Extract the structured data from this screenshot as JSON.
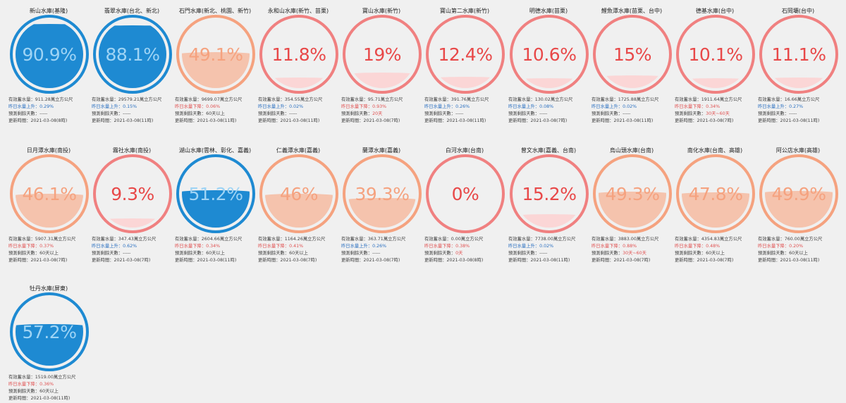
{
  "labels": {
    "effective_prefix": "有效蓄水量：",
    "forecast_prefix": "預測剩餘天數：",
    "updated_prefix": "更新時間："
  },
  "colors": {
    "full": "#1e8ad2",
    "warn": "#f5a27f",
    "low": "#f08080"
  },
  "reservoirs": [
    {
      "name": "新山水庫(基隆)",
      "percent": "90.9%",
      "level": 0.909,
      "status": "full",
      "storage": "911.28萬立方公尺",
      "change": "昨日水量上升：0.29%",
      "trend": "up",
      "forecast": "預測剩餘天數：-----",
      "updated": "更新時間：2021-03-08(8時)"
    },
    {
      "name": "翡翠水庫(台北、新北)",
      "percent": "88.1%",
      "level": 0.881,
      "status": "full",
      "storage": "29579.21萬立方公尺",
      "change": "昨日水量上升：0.15%",
      "trend": "up",
      "forecast": "預測剩餘天數：-----",
      "updated": "更新時間：2021-03-08(11時)"
    },
    {
      "name": "石門水庫(新北、桃園、新竹)",
      "percent": "49.1%",
      "level": 0.491,
      "status": "warn",
      "storage": "9699.07萬立方公尺",
      "change": "昨日水量下降：0.06%",
      "trend": "down",
      "forecast": "預測剩餘天數：60天以上",
      "updated": "更新時間：2021-03-08(11時)"
    },
    {
      "name": "永和山水庫(新竹、苗栗)",
      "percent": "11.8%",
      "level": 0.118,
      "status": "low",
      "storage": "354.55萬立方公尺",
      "change": "昨日水量上升：0.02%",
      "trend": "up",
      "forecast": "預測剩餘天數：-----",
      "updated": "更新時間：2021-03-08(11時)"
    },
    {
      "name": "寶山水庫(新竹)",
      "percent": "19%",
      "level": 0.19,
      "status": "low",
      "storage": "95.71萬立方公尺",
      "change": "昨日水量下降：0.93%",
      "trend": "down",
      "forecast": "預測剩餘天數：20天",
      "updated": "更新時間：2021-03-08(7時)"
    },
    {
      "name": "寶山第二水庫(新竹)",
      "percent": "12.4%",
      "level": 0.124,
      "status": "low",
      "storage": "391.76萬立方公尺",
      "change": "昨日水量上升：0.26%",
      "trend": "up",
      "forecast": "預測剩餘天數：-----",
      "updated": "更新時間：2021-03-08(11時)"
    },
    {
      "name": "明德水庫(苗栗)",
      "percent": "10.6%",
      "level": 0.106,
      "status": "low",
      "storage": "130.02萬立方公尺",
      "change": "昨日水量上升：0.08%",
      "trend": "up",
      "forecast": "預測剩餘天數：-----",
      "updated": "更新時間：2021-03-08(7時)"
    },
    {
      "name": "鯉魚潭水庫(苗栗、台中)",
      "percent": "15%",
      "level": 0.15,
      "status": "low",
      "storage": "1725.88萬立方公尺",
      "change": "昨日水量上升：0.02%",
      "trend": "up",
      "forecast": "預測剩餘天數：-----",
      "updated": "更新時間：2021-03-08(11時)"
    },
    {
      "name": "德基水庫(台中)",
      "percent": "10.1%",
      "level": 0.101,
      "status": "low",
      "storage": "1911.64萬立方公尺",
      "change": "昨日水量下降：0.34%",
      "trend": "down",
      "forecast": "預測剩餘天數：30天~60天",
      "updated": "更新時間：2021-03-08(7時)"
    },
    {
      "name": "石岡壩(台中)",
      "percent": "11.1%",
      "level": 0.111,
      "status": "low",
      "storage": "16.66萬立方公尺",
      "change": "昨日水量上升：0.27%",
      "trend": "up",
      "forecast": "預測剩餘天數：-----",
      "updated": "更新時間：2021-03-08(11時)"
    },
    {
      "name": "日月潭水庫(南投)",
      "percent": "46.1%",
      "level": 0.461,
      "status": "warn",
      "storage": "5907.31萬立方公尺",
      "change": "昨日水量下降：0.37%",
      "trend": "down",
      "forecast": "預測剩餘天數：60天以上",
      "updated": "更新時間：2021-03-08(7時)"
    },
    {
      "name": "霧社水庫(南投)",
      "percent": "9.3%",
      "level": 0.093,
      "status": "low",
      "storage": "347.43萬立方公尺",
      "change": "昨日水量上升：0.62%",
      "trend": "up",
      "forecast": "預測剩餘天數：-----",
      "updated": "更新時間：2021-03-08(7時)"
    },
    {
      "name": "湖山水庫(雲林、彰化、嘉義)",
      "percent": "51.2%",
      "level": 0.512,
      "status": "full",
      "storage": "2604.66萬立方公尺",
      "change": "昨日水量下降：0.34%",
      "trend": "down",
      "forecast": "預測剩餘天數：60天以上",
      "updated": "更新時間：2021-03-08(11時)"
    },
    {
      "name": "仁義潭水庫(嘉義)",
      "percent": "46%",
      "level": 0.46,
      "status": "warn",
      "storage": "1164.26萬立方公尺",
      "change": "昨日水量下降：0.41%",
      "trend": "down",
      "forecast": "預測剩餘天數：60天以上",
      "updated": "更新時間：2021-03-08(7時)"
    },
    {
      "name": "蘭潭水庫(嘉義)",
      "percent": "39.3%",
      "level": 0.393,
      "status": "warn",
      "storage": "363.71萬立方公尺",
      "change": "昨日水量上升：0.26%",
      "trend": "up",
      "forecast": "預測剩餘天數：-----",
      "updated": "更新時間：2021-03-08(7時)"
    },
    {
      "name": "白河水庫(台南)",
      "percent": "0%",
      "level": 0.0,
      "status": "low",
      "storage": "0.00萬立方公尺",
      "change": "昨日水量下降：0.38%",
      "trend": "down",
      "forecast": "預測剩餘天數：0天",
      "updated": "更新時間：2021-03-08(8時)"
    },
    {
      "name": "曾文水庫(嘉義、台南)",
      "percent": "15.2%",
      "level": 0.152,
      "status": "low",
      "storage": "7738.00萬立方公尺",
      "change": "昨日水量上升：0.02%",
      "trend": "up",
      "forecast": "預測剩餘天數：-----",
      "updated": "更新時間：2021-03-08(11時)"
    },
    {
      "name": "烏山頭水庫(台南)",
      "percent": "49.3%",
      "level": 0.493,
      "status": "warn",
      "storage": "3883.00萬立方公尺",
      "change": "昨日水量下降：0.88%",
      "trend": "down",
      "forecast": "預測剩餘天數：30天~60天",
      "updated": "更新時間：2021-03-08(7時)"
    },
    {
      "name": "南化水庫(台南、高雄)",
      "percent": "47.8%",
      "level": 0.478,
      "status": "warn",
      "storage": "4354.83萬立方公尺",
      "change": "昨日水量下降：0.48%",
      "trend": "down",
      "forecast": "預測剩餘天數：60天以上",
      "updated": "更新時間：2021-03-08(7時)"
    },
    {
      "name": "阿公店水庫(高雄)",
      "percent": "49.9%",
      "level": 0.499,
      "status": "warn",
      "storage": "760.00萬立方公尺",
      "change": "昨日水量下降：0.20%",
      "trend": "down",
      "forecast": "預測剩餘天數：60天以上",
      "updated": "更新時間：2021-03-08(11時)"
    },
    {
      "name": "牡丹水庫(屏東)",
      "percent": "57.2%",
      "level": 0.572,
      "status": "full",
      "storage": "1519.00萬立方公尺",
      "change": "昨日水量下降：0.36%",
      "trend": "down",
      "forecast": "預測剩餘天數：60天以上",
      "updated": "更新時間：2021-03-08(11時)"
    }
  ]
}
